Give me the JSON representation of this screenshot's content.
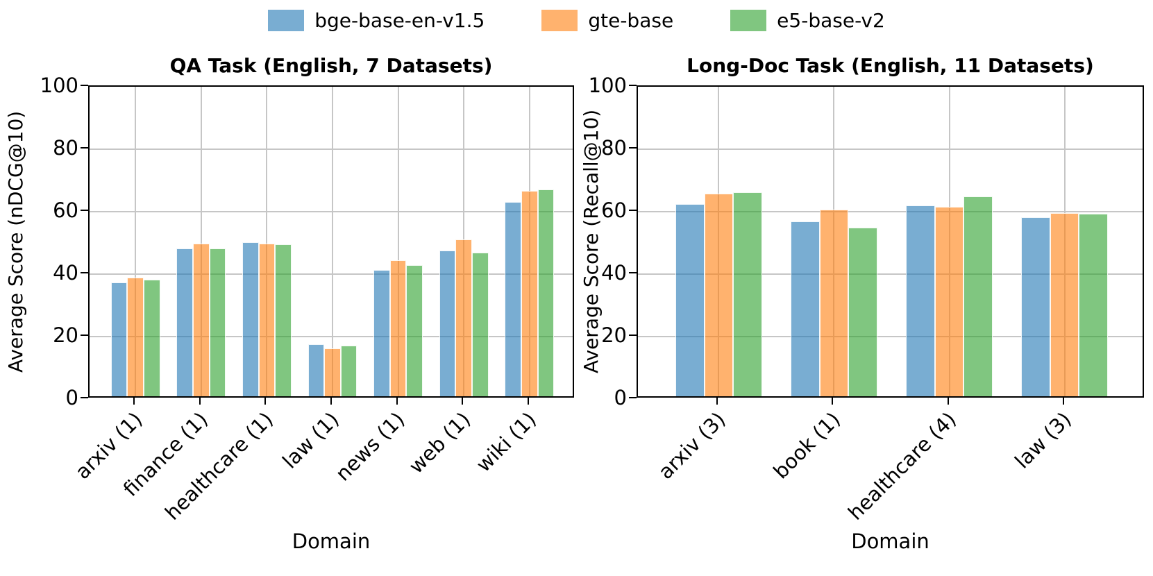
{
  "style": {
    "accent_blue": "#1f77b4",
    "accent_orange": "#ff7f0e",
    "accent_green": "#2ca02c",
    "fill_alpha": 0.6,
    "grid_color": "#c6c6c6",
    "axis_color": "#000000",
    "bar_edge_color": "#ffffff"
  },
  "legend": {
    "position": "top-center",
    "items": [
      {
        "label": "bge-base-en-v1.5",
        "color": "#1f77b4"
      },
      {
        "label": "gte-base",
        "color": "#ff7f0e"
      },
      {
        "label": "e5-base-v2",
        "color": "#2ca02c"
      }
    ]
  },
  "chart_data": [
    {
      "type": "bar",
      "title": "QA Task (English, 7 Datasets)",
      "xlabel": "Domain",
      "ylabel": "Average Score (nDCG@10)",
      "ylim": [
        0,
        100
      ],
      "yticks": [
        0,
        20,
        40,
        60,
        80,
        100
      ],
      "grid": true,
      "categories": [
        "arxiv (1)",
        "finance (1)",
        "healthcare (1)",
        "law (1)",
        "news (1)",
        "web (1)",
        "wiki (1)"
      ],
      "series": [
        {
          "name": "bge-base-en-v1.5",
          "color": "#1f77b4",
          "values": [
            36.5,
            47.3,
            49.4,
            16.7,
            40.5,
            46.7,
            62.3
          ]
        },
        {
          "name": "gte-base",
          "color": "#ff7f0e",
          "values": [
            38.0,
            49.0,
            48.9,
            15.4,
            43.5,
            50.2,
            65.7
          ]
        },
        {
          "name": "e5-base-v2",
          "color": "#2ca02c",
          "values": [
            37.4,
            47.3,
            48.7,
            16.2,
            42.0,
            45.9,
            66.3
          ]
        }
      ]
    },
    {
      "type": "bar",
      "title": "Long-Doc Task (English, 11 Datasets)",
      "xlabel": "Domain",
      "ylabel": "Average Score (Recall@10)",
      "ylim": [
        0,
        100
      ],
      "yticks": [
        0,
        20,
        40,
        60,
        80,
        100
      ],
      "grid": true,
      "categories": [
        "arxiv (3)",
        "book (1)",
        "healthcare (4)",
        "law (3)"
      ],
      "series": [
        {
          "name": "bge-base-en-v1.5",
          "color": "#1f77b4",
          "values": [
            61.5,
            56.0,
            61.2,
            57.3
          ]
        },
        {
          "name": "gte-base",
          "color": "#ff7f0e",
          "values": [
            65.0,
            59.7,
            60.6,
            58.6
          ]
        },
        {
          "name": "e5-base-v2",
          "color": "#2ca02c",
          "values": [
            65.3,
            54.1,
            63.9,
            58.5
          ]
        }
      ]
    }
  ]
}
